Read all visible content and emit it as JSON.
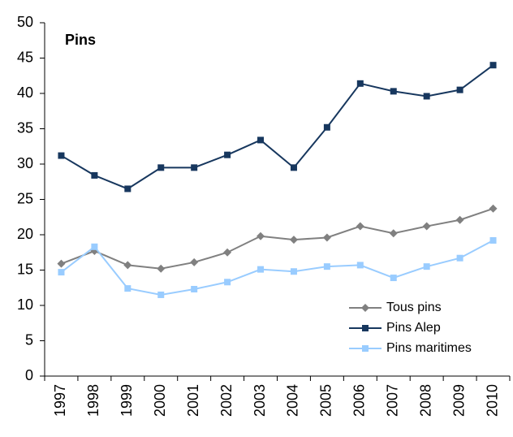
{
  "chart_data": {
    "type": "line",
    "title": "Pins",
    "categories": [
      "1997",
      "1998",
      "1999",
      "2000",
      "2001",
      "2002",
      "2003",
      "2004",
      "2005",
      "2006",
      "2007",
      "2008",
      "2009",
      "2010"
    ],
    "series": [
      {
        "name": "Tous pins",
        "color": "#808080",
        "marker": "diamond",
        "values": [
          15.9,
          17.7,
          15.7,
          15.2,
          16.1,
          17.5,
          19.8,
          19.3,
          19.6,
          21.2,
          20.2,
          21.2,
          22.1,
          23.7
        ]
      },
      {
        "name": "Pins Alep",
        "color": "#17375e",
        "marker": "square",
        "values": [
          31.2,
          28.4,
          26.5,
          29.5,
          29.5,
          31.3,
          33.4,
          29.5,
          35.2,
          41.4,
          40.3,
          39.6,
          40.5,
          44.0
        ]
      },
      {
        "name": "Pins maritimes",
        "color": "#99ccff",
        "marker": "square",
        "values": [
          14.7,
          18.3,
          12.4,
          11.5,
          12.3,
          13.3,
          15.1,
          14.8,
          15.5,
          15.7,
          13.9,
          15.5,
          16.7,
          19.2
        ]
      }
    ],
    "ylim": [
      0,
      50
    ],
    "yticks": [
      0,
      5,
      10,
      15,
      20,
      25,
      30,
      35,
      40,
      45,
      50
    ],
    "grid": false,
    "legend": "bottom-right"
  }
}
